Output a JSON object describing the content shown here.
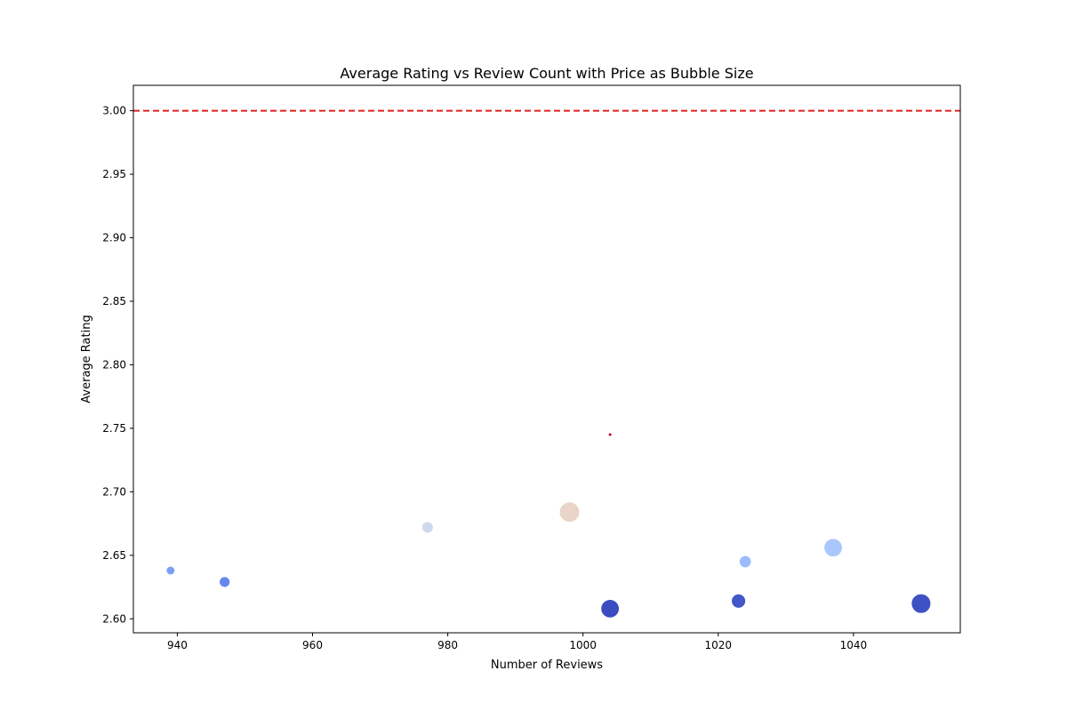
{
  "chart_data": {
    "type": "scatter",
    "title": "Average Rating vs Review Count with Price as Bubble Size",
    "xlabel": "Number of Reviews",
    "ylabel": "Average Rating",
    "xlim": [
      933.5,
      1055.8
    ],
    "ylim": [
      2.589,
      3.02
    ],
    "xticks": [
      940,
      960,
      980,
      1000,
      1020,
      1040
    ],
    "yticks": [
      2.6,
      2.65,
      2.7,
      2.75,
      2.8,
      2.85,
      2.9,
      2.95,
      3.0
    ],
    "ytick_labels": [
      "2.60",
      "2.65",
      "2.70",
      "2.75",
      "2.80",
      "2.85",
      "2.90",
      "2.95",
      "3.00"
    ],
    "grid": false,
    "reference_line": {
      "y": 3.0,
      "color": "#dd2222",
      "style": "dashed"
    },
    "points": [
      {
        "x": 939,
        "y": 2.638,
        "relative_size": 0.38,
        "color": "#7b9ff9"
      },
      {
        "x": 947,
        "y": 2.629,
        "relative_size": 0.47,
        "color": "#6788ee"
      },
      {
        "x": 977,
        "y": 2.672,
        "relative_size": 0.5,
        "color": "#cdd9ec"
      },
      {
        "x": 998,
        "y": 2.684,
        "relative_size": 0.88,
        "color": "#ead4c8"
      },
      {
        "x": 1004,
        "y": 2.745,
        "relative_size": 0.15,
        "color": "#b40426"
      },
      {
        "x": 1004,
        "y": 2.608,
        "relative_size": 0.8,
        "color": "#3b4cc0"
      },
      {
        "x": 1023,
        "y": 2.614,
        "relative_size": 0.62,
        "color": "#4257c9"
      },
      {
        "x": 1024,
        "y": 2.645,
        "relative_size": 0.53,
        "color": "#9abbff"
      },
      {
        "x": 1037,
        "y": 2.656,
        "relative_size": 0.8,
        "color": "#aac7fd"
      },
      {
        "x": 1050,
        "y": 2.612,
        "relative_size": 0.85,
        "color": "#3e51c5"
      }
    ]
  }
}
